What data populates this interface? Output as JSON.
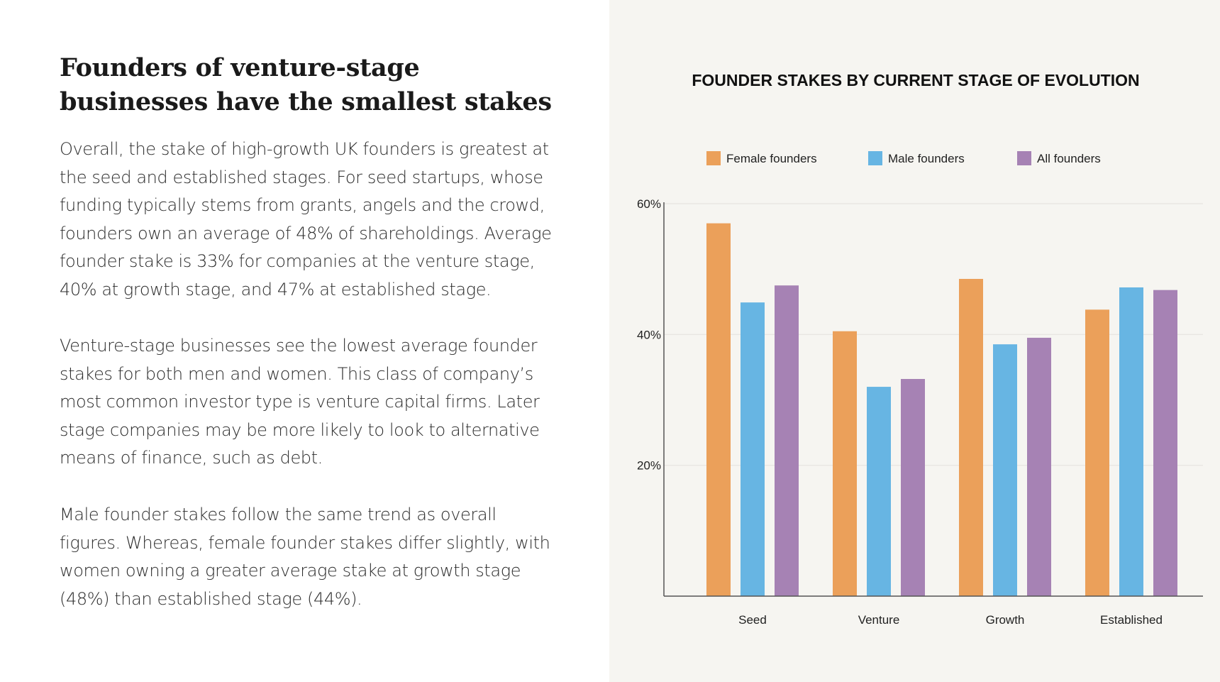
{
  "article": {
    "headline": "Founders of venture-stage businesses have the smallest stakes",
    "paragraphs": [
      "Overall, the stake of high-growth UK founders is greatest at the seed and established stages. For seed startups, whose funding typically stems from grants, angels and the crowd, founders own an average of 48% of shareholdings. Average founder stake is 33% for companies at the venture stage, 40% at growth stage, and 47% at established stage.",
      "Venture-stage businesses see the lowest average founder stakes for both men and women. This class of company’s most common investor type is venture capital firms. Later stage companies may be more likely to look to alternative means of finance, such as debt.",
      "Male founder stakes follow the same trend as overall figures. Whereas, female founder stakes differ slightly, with women owning a greater average stake at growth stage (48%) than established stage (44%)."
    ]
  },
  "colors": {
    "female": "#eba05a",
    "male": "#67b5e3",
    "all": "#a682b4",
    "grid": "#e6e4df",
    "axis": "#555555"
  },
  "chart_data": {
    "type": "bar",
    "title": "FOUNDER STAKES BY CURRENT STAGE OF EVOLUTION",
    "categories": [
      "Seed",
      "Venture",
      "Growth",
      "Established"
    ],
    "series": [
      {
        "name": "Female founders",
        "values": [
          57,
          40.5,
          48.5,
          43.8
        ]
      },
      {
        "name": "Male founders",
        "values": [
          44.9,
          32,
          38.5,
          47.2
        ]
      },
      {
        "name": "All founders",
        "values": [
          47.5,
          33.2,
          39.5,
          46.8
        ]
      }
    ],
    "yticks": [
      "20%",
      "40%",
      "60%"
    ],
    "ytick_values": [
      20,
      40,
      60
    ],
    "ylim": [
      0,
      60
    ],
    "grid": true,
    "legend_position": "top",
    "xlabel": "",
    "ylabel": ""
  }
}
